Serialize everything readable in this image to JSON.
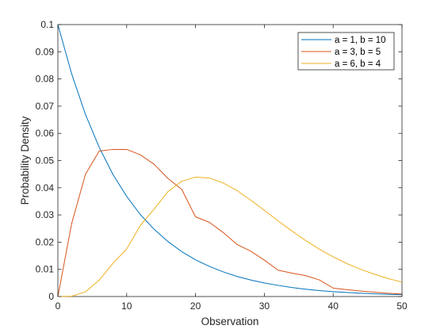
{
  "chart_data": {
    "type": "line",
    "xlabel": "Observation",
    "ylabel": "Probability Density",
    "xlim": [
      0,
      50
    ],
    "ylim": [
      0,
      0.1
    ],
    "xticks": [
      0,
      10,
      20,
      30,
      40,
      50
    ],
    "yticks": [
      0,
      0.01,
      0.02,
      0.03,
      0.04,
      0.05,
      0.06,
      0.07,
      0.08,
      0.09,
      0.1
    ],
    "xtick_labels": [
      "0",
      "10",
      "20",
      "30",
      "40",
      "50"
    ],
    "ytick_labels": [
      "0",
      "0.01",
      "0.02",
      "0.03",
      "0.04",
      "0.05",
      "0.06",
      "0.07",
      "0.08",
      "0.09",
      "0.1"
    ],
    "grid": false,
    "legend_position": "top-right",
    "x": [
      0,
      2,
      4,
      6,
      8,
      10,
      12,
      14,
      16,
      18,
      20,
      22,
      24,
      26,
      28,
      30,
      32,
      34,
      36,
      38,
      40,
      42,
      44,
      46,
      48,
      50
    ],
    "series": [
      {
        "name": "a = 1, b = 10",
        "color": "#0072BD",
        "values": [
          0.1,
          0.0819,
          0.067,
          0.0549,
          0.0449,
          0.0368,
          0.0301,
          0.0247,
          0.0202,
          0.0165,
          0.0135,
          0.0111,
          0.0091,
          0.0074,
          0.0061,
          0.005,
          0.0041,
          0.0033,
          0.0027,
          0.0022,
          0.0018,
          0.0015,
          0.0012,
          0.001,
          0.0008,
          0.0007
        ]
      },
      {
        "name": "a = 3, b = 5",
        "color": "#D95319",
        "values": [
          0,
          0.0268,
          0.0449,
          0.0535,
          0.0541,
          0.0541,
          0.0521,
          0.0486,
          0.0434,
          0.0394,
          0.0293,
          0.0273,
          0.0236,
          0.0192,
          0.0167,
          0.0134,
          0.0097,
          0.0086,
          0.0077,
          0.0061,
          0.0031,
          0.0025,
          0.002,
          0.0016,
          0.0012,
          0.0009
        ]
      },
      {
        "name": "a = 6, b = 4",
        "color": "#EDB120",
        "values": [
          0,
          0.0001,
          0.0017,
          0.006,
          0.0122,
          0.0175,
          0.0262,
          0.0322,
          0.0386,
          0.0424,
          0.0439,
          0.0436,
          0.0418,
          0.039,
          0.0355,
          0.0317,
          0.0278,
          0.0241,
          0.0206,
          0.0174,
          0.0146,
          0.0121,
          0.01,
          0.0082,
          0.0066,
          0.0053
        ]
      }
    ]
  }
}
